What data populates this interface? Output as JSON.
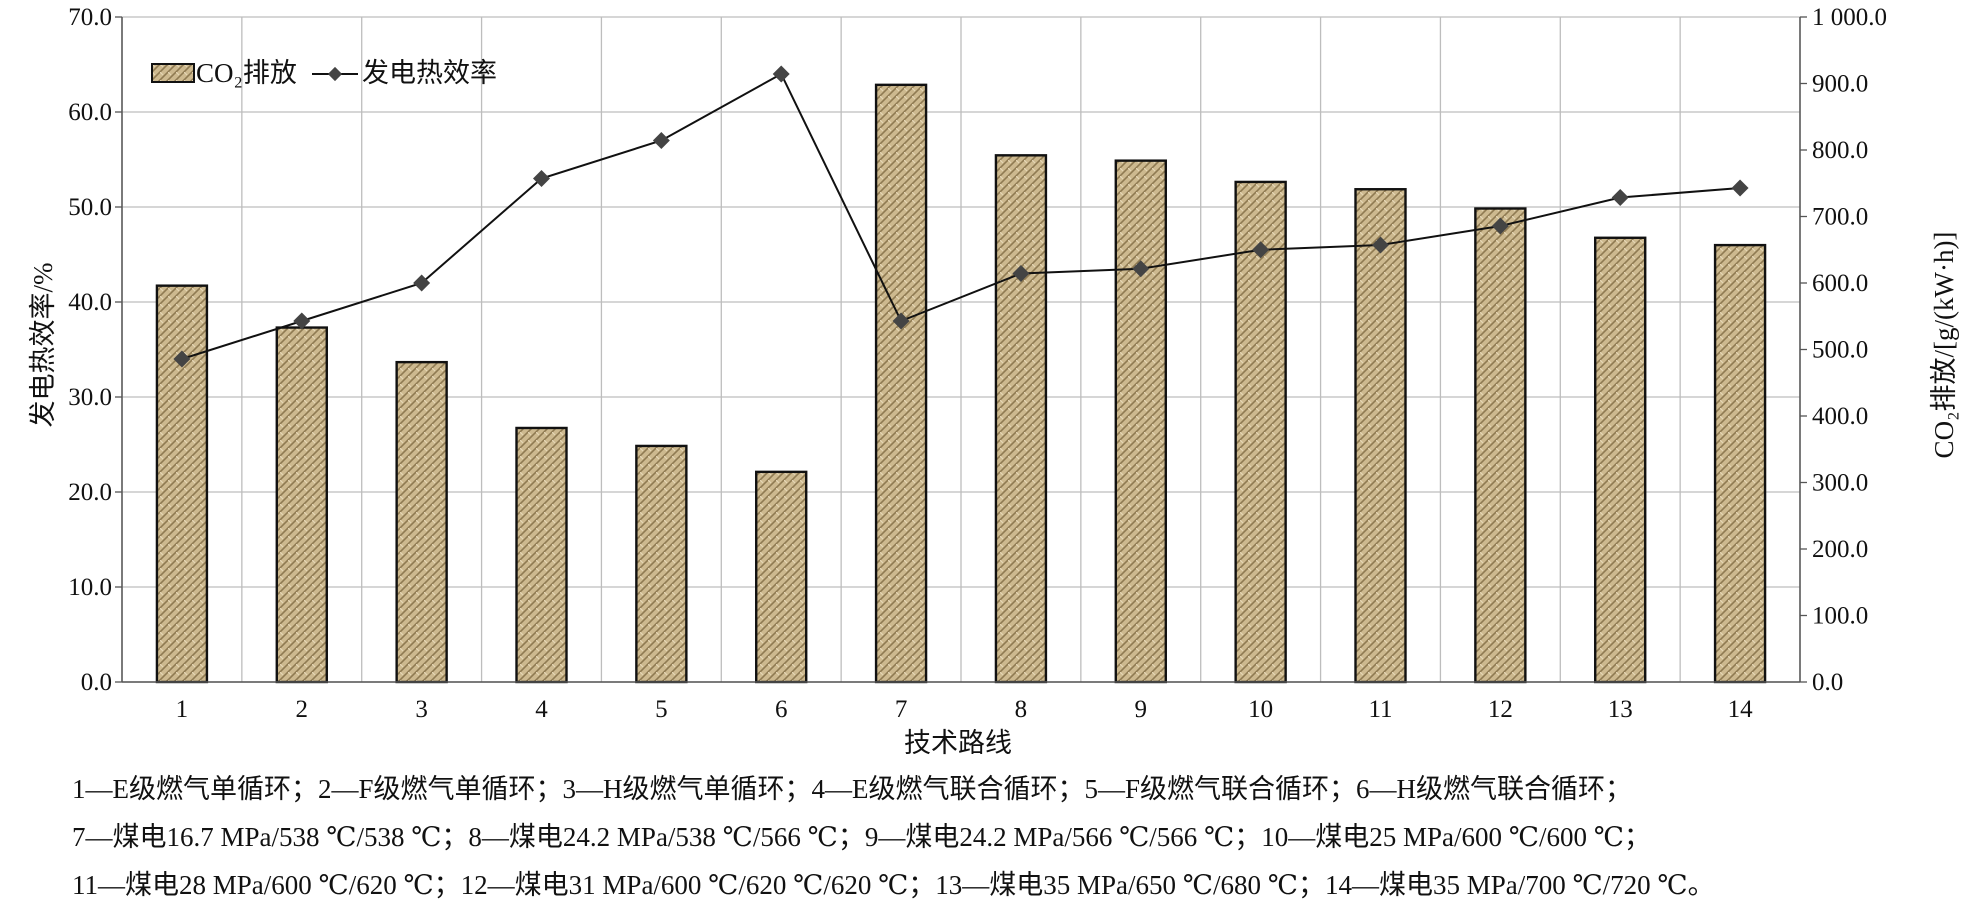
{
  "chart_data": {
    "type": "bar",
    "title": "",
    "xlabel": "技术路线",
    "ylabel_left": "发电热效率/%",
    "ylabel_right": "CO₂排放/[g/(kW·h)]",
    "categories": [
      "1",
      "2",
      "3",
      "4",
      "5",
      "6",
      "7",
      "8",
      "9",
      "10",
      "11",
      "12",
      "13",
      "14"
    ],
    "ylim_left": [
      0,
      70
    ],
    "ylim_right": [
      0,
      1000
    ],
    "left_ticks": [
      "0.0",
      "10.0",
      "20.0",
      "30.0",
      "40.0",
      "50.0",
      "60.0",
      "70.0"
    ],
    "right_ticks": [
      "0.0",
      "100.0",
      "200.0",
      "300.0",
      "400.0",
      "500.0",
      "600.0",
      "700.0",
      "800.0",
      "900.0",
      "1 000.0"
    ],
    "grid": true,
    "legend": {
      "position": "top-left",
      "bar_label": "CO₂排放",
      "line_label": "发电热效率"
    },
    "series": [
      {
        "name": "CO₂排放",
        "kind": "bar",
        "axis": "right",
        "values": [
          596,
          533,
          481,
          382,
          355,
          316,
          898,
          792,
          784,
          752,
          741,
          712,
          668,
          657
        ]
      },
      {
        "name": "发电热效率",
        "kind": "line",
        "axis": "left",
        "values": [
          34.0,
          38.0,
          42.0,
          53.0,
          57.0,
          64.0,
          38.0,
          43.0,
          43.5,
          45.5,
          46.0,
          48.0,
          51.0,
          52.0
        ]
      }
    ],
    "colors": {
      "bar_fill": "#c8b48a",
      "bar_edge": "#111111",
      "line": "#111111",
      "marker": "#444444",
      "grid": "#bdbdbd"
    }
  },
  "notes": [
    "1—E级燃气单循环；2—F级燃气单循环；3—H级燃气单循环；4—E级燃气联合循环；5—F级燃气联合循环；6—H级燃气联合循环；",
    "7—煤电16.7 MPa/538 ℃/538 ℃；8—煤电24.2 MPa/538 ℃/566 ℃；9—煤电24.2 MPa/566 ℃/566 ℃；10—煤电25 MPa/600 ℃/600 ℃；",
    "11—煤电28 MPa/600 ℃/620 ℃；12—煤电31 MPa/600 ℃/620 ℃/620 ℃；13—煤电35 MPa/650 ℃/680 ℃；14—煤电35 MPa/700 ℃/720 ℃。"
  ]
}
